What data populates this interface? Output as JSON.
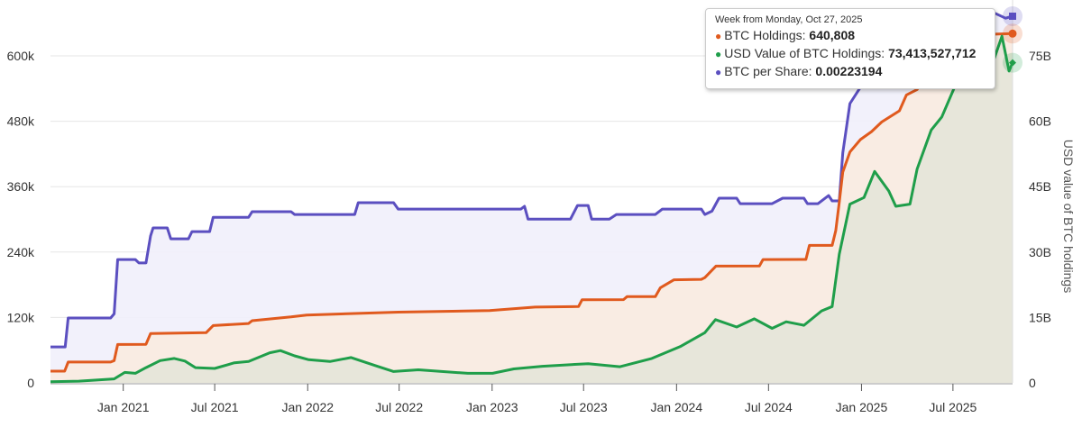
{
  "chart_data": {
    "type": "area",
    "title": "",
    "x_range": [
      "2020-08-10",
      "2025-10-27"
    ],
    "x_ticks": [
      "Jan 2021",
      "Jul 2021",
      "Jan 2022",
      "Jul 2022",
      "Jan 2023",
      "Jul 2023",
      "Jan 2024",
      "Jul 2024",
      "Jan 2025",
      "Jul 2025"
    ],
    "x_tick_dates": [
      "2021-01-01",
      "2021-07-01",
      "2022-01-01",
      "2022-07-01",
      "2023-01-01",
      "2023-07-01",
      "2024-01-01",
      "2024-07-01",
      "2025-01-01",
      "2025-07-01"
    ],
    "y_left": {
      "ticks": [
        "0",
        "120k",
        "240k",
        "360k",
        "480k",
        "600k"
      ],
      "tick_values": [
        0,
        120000,
        240000,
        360000,
        480000,
        600000
      ],
      "range": [
        0,
        700000
      ]
    },
    "y_right": {
      "label": "USD value of BTC holdings",
      "ticks": [
        "0",
        "15B",
        "30B",
        "45B",
        "60B",
        "75B"
      ],
      "tick_values": [
        0,
        15,
        30,
        45,
        60,
        75
      ],
      "range": [
        0,
        87.5
      ]
    },
    "grid": true,
    "series": [
      {
        "name": "BTC per Share",
        "color": "#5b4fc0",
        "fill": "#f1f0fb",
        "axis": "hidden",
        "range": [
          0,
          0.0026
        ],
        "points": [
          [
            "2020-08-10",
            0.000219
          ],
          [
            "2020-09-08",
            0.000219
          ],
          [
            "2020-09-14",
            0.000395
          ],
          [
            "2020-12-07",
            0.000395
          ],
          [
            "2020-12-14",
            0.00042
          ],
          [
            "2020-12-21",
            0.000751
          ],
          [
            "2021-01-25",
            0.000751
          ],
          [
            "2021-02-01",
            0.00073
          ],
          [
            "2021-02-15",
            0.00073
          ],
          [
            "2021-02-24",
            0.000895
          ],
          [
            "2021-03-01",
            0.000943
          ],
          [
            "2021-03-29",
            0.000943
          ],
          [
            "2021-04-05",
            0.000877
          ],
          [
            "2021-05-10",
            0.000877
          ],
          [
            "2021-05-17",
            0.000921
          ],
          [
            "2021-06-21",
            0.000921
          ],
          [
            "2021-06-28",
            0.001008
          ],
          [
            "2021-09-06",
            0.001008
          ],
          [
            "2021-09-13",
            0.001042
          ],
          [
            "2021-11-29",
            0.001042
          ],
          [
            "2021-12-06",
            0.001025
          ],
          [
            "2022-04-04",
            0.001025
          ],
          [
            "2022-04-11",
            0.001097
          ],
          [
            "2022-06-20",
            0.001097
          ],
          [
            "2022-06-29",
            0.001058
          ],
          [
            "2023-02-27",
            0.001058
          ],
          [
            "2023-03-06",
            0.001075
          ],
          [
            "2023-03-13",
            0.000997
          ],
          [
            "2023-06-05",
            0.000997
          ],
          [
            "2023-06-19",
            0.00108
          ],
          [
            "2023-07-10",
            0.00108
          ],
          [
            "2023-07-17",
            0.000997
          ],
          [
            "2023-08-21",
            0.000997
          ],
          [
            "2023-09-04",
            0.001025
          ],
          [
            "2023-11-20",
            0.001025
          ],
          [
            "2023-12-04",
            0.001058
          ],
          [
            "2024-02-19",
            0.001058
          ],
          [
            "2024-02-26",
            0.001025
          ],
          [
            "2024-03-11",
            0.001045
          ],
          [
            "2024-03-25",
            0.001124
          ],
          [
            "2024-04-29",
            0.001124
          ],
          [
            "2024-05-06",
            0.001091
          ],
          [
            "2024-07-08",
            0.001091
          ],
          [
            "2024-07-29",
            0.001124
          ],
          [
            "2024-09-09",
            0.001124
          ],
          [
            "2024-09-16",
            0.001091
          ],
          [
            "2024-10-07",
            0.001091
          ],
          [
            "2024-10-28",
            0.00114
          ],
          [
            "2024-11-04",
            0.001108
          ],
          [
            "2024-11-18",
            0.001108
          ],
          [
            "2024-11-25",
            0.0014
          ],
          [
            "2024-12-09",
            0.0017
          ],
          [
            "2024-12-30",
            0.0018
          ],
          [
            "2025-01-27",
            0.00189
          ],
          [
            "2025-03-17",
            0.00195
          ],
          [
            "2025-05-12",
            0.00204
          ],
          [
            "2025-06-23",
            0.00212
          ],
          [
            "2025-08-18",
            0.00222
          ],
          [
            "2025-09-22",
            0.00225
          ],
          [
            "2025-10-13",
            0.00222
          ],
          [
            "2025-10-27",
            0.00223194
          ]
        ]
      },
      {
        "name": "BTC Holdings",
        "color": "#e05a1e",
        "fill": "#f9ebe0",
        "axis": "left",
        "points": [
          [
            "2020-08-10",
            21454
          ],
          [
            "2020-09-07",
            21454
          ],
          [
            "2020-09-14",
            38250
          ],
          [
            "2020-12-07",
            38250
          ],
          [
            "2020-12-14",
            40824
          ],
          [
            "2020-12-21",
            70470
          ],
          [
            "2021-02-15",
            70784
          ],
          [
            "2021-02-24",
            90531
          ],
          [
            "2021-06-14",
            92079
          ],
          [
            "2021-06-28",
            105085
          ],
          [
            "2021-09-06",
            108992
          ],
          [
            "2021-09-13",
            114042
          ],
          [
            "2021-11-29",
            121044
          ],
          [
            "2021-12-30",
            124391
          ],
          [
            "2022-06-29",
            129699
          ],
          [
            "2022-12-27",
            132500
          ],
          [
            "2023-03-27",
            138955
          ],
          [
            "2023-06-21",
            140000
          ],
          [
            "2023-06-28",
            152333
          ],
          [
            "2023-09-18",
            152800
          ],
          [
            "2023-09-25",
            158245
          ],
          [
            "2023-11-20",
            158400
          ],
          [
            "2023-11-30",
            174530
          ],
          [
            "2023-12-27",
            189150
          ],
          [
            "2024-02-19",
            190000
          ],
          [
            "2024-02-26",
            193000
          ],
          [
            "2024-03-19",
            214246
          ],
          [
            "2024-06-13",
            214400
          ],
          [
            "2024-06-20",
            226331
          ],
          [
            "2024-09-13",
            226500
          ],
          [
            "2024-09-20",
            252220
          ],
          [
            "2024-11-04",
            252220
          ],
          [
            "2024-11-11",
            279420
          ],
          [
            "2024-11-18",
            331200
          ],
          [
            "2024-11-25",
            386700
          ],
          [
            "2024-12-09",
            423650
          ],
          [
            "2024-12-30",
            446400
          ],
          [
            "2025-01-21",
            461000
          ],
          [
            "2025-02-10",
            478740
          ],
          [
            "2025-03-17",
            499226
          ],
          [
            "2025-03-31",
            528185
          ],
          [
            "2025-04-21",
            538200
          ],
          [
            "2025-05-12",
            568840
          ],
          [
            "2025-06-16",
            592100
          ],
          [
            "2025-07-14",
            601550
          ],
          [
            "2025-07-28",
            628791
          ],
          [
            "2025-08-18",
            629376
          ],
          [
            "2025-09-22",
            639835
          ],
          [
            "2025-10-27",
            640808
          ]
        ]
      },
      {
        "name": "USD Value of BTC Holdings",
        "color": "#1f9e4a",
        "fill": "#e4e6d8",
        "axis": "right",
        "unit": "B USD",
        "points": [
          [
            "2020-08-10",
            0.25
          ],
          [
            "2020-10-05",
            0.4
          ],
          [
            "2020-12-14",
            0.9
          ],
          [
            "2021-01-04",
            2.4
          ],
          [
            "2021-01-25",
            2.2
          ],
          [
            "2021-02-15",
            3.5
          ],
          [
            "2021-03-15",
            5.1
          ],
          [
            "2021-04-12",
            5.6
          ],
          [
            "2021-05-03",
            5.0
          ],
          [
            "2021-05-24",
            3.5
          ],
          [
            "2021-07-01",
            3.3
          ],
          [
            "2021-08-09",
            4.6
          ],
          [
            "2021-09-06",
            4.9
          ],
          [
            "2021-10-18",
            6.9
          ],
          [
            "2021-11-08",
            7.4
          ],
          [
            "2021-12-06",
            6.2
          ],
          [
            "2022-01-03",
            5.3
          ],
          [
            "2022-02-14",
            4.9
          ],
          [
            "2022-03-28",
            5.8
          ],
          [
            "2022-05-16",
            3.9
          ],
          [
            "2022-06-20",
            2.6
          ],
          [
            "2022-08-08",
            3.0
          ],
          [
            "2022-11-14",
            2.2
          ],
          [
            "2023-01-02",
            2.2
          ],
          [
            "2023-02-13",
            3.2
          ],
          [
            "2023-04-10",
            3.8
          ],
          [
            "2023-07-10",
            4.4
          ],
          [
            "2023-09-11",
            3.7
          ],
          [
            "2023-11-13",
            5.6
          ],
          [
            "2024-01-08",
            8.3
          ],
          [
            "2024-02-26",
            11.5
          ],
          [
            "2024-03-18",
            14.5
          ],
          [
            "2024-04-29",
            12.8
          ],
          [
            "2024-06-03",
            14.7
          ],
          [
            "2024-07-08",
            12.5
          ],
          [
            "2024-08-05",
            14.0
          ],
          [
            "2024-09-09",
            13.2
          ],
          [
            "2024-10-14",
            16.5
          ],
          [
            "2024-11-04",
            17.5
          ],
          [
            "2024-11-18",
            29.5
          ],
          [
            "2024-12-09",
            41.0
          ],
          [
            "2025-01-06",
            42.5
          ],
          [
            "2025-01-27",
            48.5
          ],
          [
            "2025-02-24",
            44.0
          ],
          [
            "2025-03-10",
            40.5
          ],
          [
            "2025-04-07",
            41.0
          ],
          [
            "2025-04-21",
            49.0
          ],
          [
            "2025-05-19",
            58.0
          ],
          [
            "2025-06-09",
            61.0
          ],
          [
            "2025-07-14",
            70.5
          ],
          [
            "2025-08-04",
            72.0
          ],
          [
            "2025-08-25",
            69.0
          ],
          [
            "2025-09-15",
            72.5
          ],
          [
            "2025-10-06",
            79.5
          ],
          [
            "2025-10-20",
            71.5
          ],
          [
            "2025-10-27",
            73.413527712
          ]
        ]
      }
    ],
    "tooltip": {
      "header": "Week from Monday, Oct 27, 2025",
      "rows": [
        {
          "label": "BTC Holdings: ",
          "value": "640,808",
          "color": "#e05a1e"
        },
        {
          "label": "USD Value of BTC Holdings: ",
          "value": "73,413,527,712",
          "color": "#1f9e4a"
        },
        {
          "label": "BTC per Share: ",
          "value": "0.00223194",
          "color": "#5b4fc0"
        }
      ]
    }
  }
}
